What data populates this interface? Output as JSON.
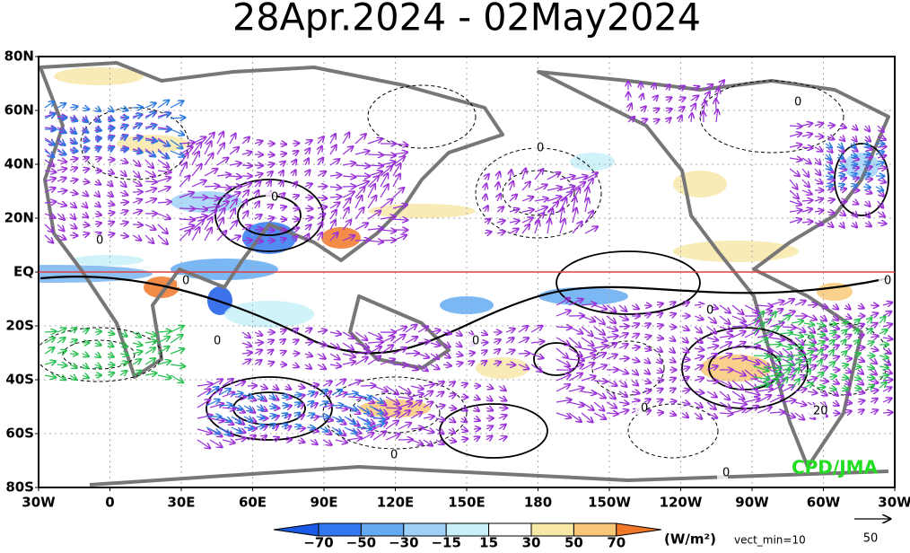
{
  "title": "28Apr.2024 - 02May2024",
  "lat_labels": [
    "80N",
    "60N",
    "40N",
    "20N",
    "EQ",
    "20S",
    "40S",
    "60S",
    "80S"
  ],
  "lon_labels": [
    "30W",
    "0",
    "30E",
    "60E",
    "90E",
    "120E",
    "150E",
    "180",
    "150W",
    "120W",
    "90W",
    "60W",
    "30W"
  ],
  "colorbar": {
    "labels": [
      "−70",
      "−50",
      "−30",
      "−15",
      "15",
      "30",
      "50",
      "70"
    ],
    "units": "(W/m²)"
  },
  "vect_min": "vect_min=10",
  "ref_vector": "50",
  "credit": "CPD/JMA",
  "contour_labels": [
    "0",
    "0",
    "0",
    "0",
    "0",
    "0",
    "0",
    "0",
    "0",
    "0",
    "0",
    "0",
    "20"
  ]
}
